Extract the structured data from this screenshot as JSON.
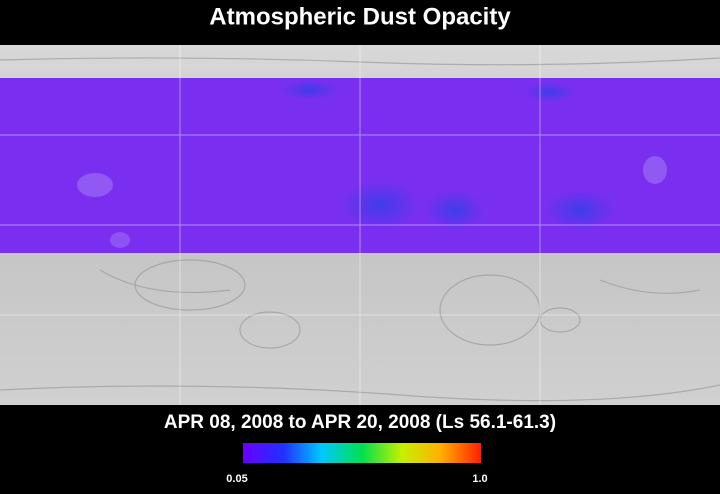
{
  "title": "Atmospheric Dust Opacity",
  "period": "APR 08, 2008 to APR 20, 2008 (Ls 56.1-61.3)",
  "colorbar": {
    "min_label": "0.05",
    "max_label": "1.0"
  }
}
